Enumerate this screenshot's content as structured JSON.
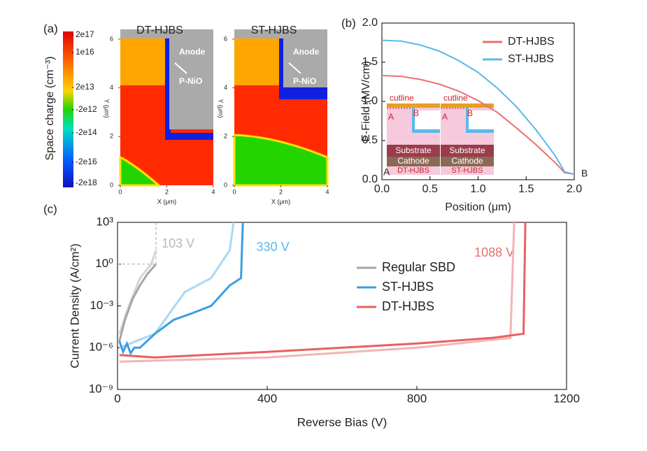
{
  "chart_data": [
    {
      "type": "simulation",
      "panel": "(a)",
      "colorbar_label": "Space charge (cm⁻³)",
      "colorbar_ticks": [
        {
          "value": 2e+17,
          "label": "2e17"
        },
        {
          "value": 1e+16,
          "label": "1e16"
        },
        {
          "value": 20000000000000.0,
          "label": "2e13"
        },
        {
          "value": -2000000000000.0,
          "label": "-2e12"
        },
        {
          "value": -200000000000000.0,
          "label": "-2e14"
        },
        {
          "value": -2e+16,
          "label": "-2e16"
        },
        {
          "value": -2e+18,
          "label": "-2e18"
        }
      ],
      "maps": [
        {
          "title": "DT-HJBS",
          "anode": "Anode",
          "layer": "P-NiO"
        },
        {
          "title": "ST-HJBS",
          "anode": "Anode",
          "layer": "P-NiO"
        }
      ],
      "xlabel": "X (μm)",
      "ylabel": "Y (μm)",
      "xlim": [
        0,
        4
      ],
      "ylim": [
        0,
        6.4
      ],
      "xticks": [
        0,
        2,
        4
      ],
      "yticks": [
        0,
        2,
        4,
        6
      ]
    },
    {
      "type": "line",
      "panel": "(b)",
      "xlabel": "Position (μm)",
      "ylabel": "E-Field (MV/cm)",
      "xlim": [
        0,
        2
      ],
      "ylim": [
        0,
        2
      ],
      "xticks": [
        {
          "value": 0,
          "label": "0.0"
        },
        {
          "value": 0.5,
          "label": "0.5"
        },
        {
          "value": 1,
          "label": "1.0"
        },
        {
          "value": 1.5,
          "label": "1.5"
        },
        {
          "value": 2,
          "label": "2.0"
        }
      ],
      "yticks": [
        {
          "value": 0,
          "label": "0.0"
        },
        {
          "value": 0.5,
          "label": "0.5"
        },
        {
          "value": 1,
          "label": "1.0"
        },
        {
          "value": 1.5,
          "label": "1.5"
        },
        {
          "value": 2,
          "label": "2.0"
        }
      ],
      "x": [
        0,
        0.2,
        0.4,
        0.6,
        0.8,
        1.0,
        1.2,
        1.4,
        1.6,
        1.8,
        1.9,
        2.0
      ],
      "series": [
        {
          "name": "DT-HJBS",
          "color": "#e8706f",
          "values": [
            1.33,
            1.32,
            1.28,
            1.22,
            1.13,
            1.01,
            0.86,
            0.66,
            0.45,
            0.22,
            0.09,
            0.07
          ]
        },
        {
          "name": "ST-HJBS",
          "color": "#5bb8ea",
          "values": [
            1.78,
            1.77,
            1.72,
            1.64,
            1.52,
            1.37,
            1.17,
            0.93,
            0.64,
            0.31,
            0.1,
            0.07
          ]
        }
      ],
      "legend": "upper right",
      "point_a": "A",
      "point_b": "B",
      "insets": [
        {
          "title": "DT-HJBS",
          "cutline": "cutline",
          "a": "A",
          "b": "B",
          "substrate": "Substrate",
          "cathode": "Cathode"
        },
        {
          "title": "ST-HJBS",
          "cutline": "cutline",
          "a": "A",
          "b": "B",
          "substrate": "Substrate",
          "cathode": "Cathode"
        }
      ]
    },
    {
      "type": "line",
      "panel": "(c)",
      "xlabel": "Reverse Bias (V)",
      "ylabel": "Current Density (A/cm²)",
      "log_y": true,
      "xlim": [
        0,
        1200
      ],
      "ylim": [
        1e-09,
        1000
      ],
      "xticks": [
        0,
        400,
        800,
        1200
      ],
      "yticks": [
        {
          "value": 1e-09,
          "label": "10⁻⁹"
        },
        {
          "value": 1e-06,
          "label": "10⁻⁶"
        },
        {
          "value": 0.001,
          "label": "10⁻³"
        },
        {
          "value": 1,
          "label": "10⁰"
        },
        {
          "value": 1000,
          "label": "10³"
        }
      ],
      "series": [
        {
          "color": "#d4d4d4",
          "x": [
            5,
            30,
            60,
            90,
            103
          ],
          "values": [
            1e-05,
            0.001,
            0.1,
            1,
            10
          ]
        },
        {
          "color": "#a8d8f5",
          "x": [
            5,
            100,
            180,
            250,
            300,
            310
          ],
          "values": [
            1e-06,
            1e-05,
            0.01,
            0.1,
            10,
            1000
          ]
        },
        {
          "color": "#f4b4b4",
          "x": [
            5,
            400,
            800,
            1050,
            1060
          ],
          "values": [
            1e-07,
            2e-07,
            1e-06,
            5e-06,
            1000
          ]
        },
        {
          "name": "Regular SBD",
          "color": "#a6a6a6",
          "x": [
            5,
            20,
            40,
            60,
            80,
            103
          ],
          "values": [
            3e-06,
            0.0001,
            0.003,
            0.03,
            0.2,
            1
          ]
        },
        {
          "name": "ST-HJBS",
          "color": "#3a9ee0",
          "x": [
            5,
            15,
            25,
            35,
            45,
            60,
            100,
            150,
            200,
            250,
            300,
            330,
            335
          ],
          "values": [
            3e-06,
            5e-07,
            2e-06,
            4e-07,
            1e-06,
            1e-06,
            1e-05,
            0.0001,
            0.0003,
            0.001,
            0.03,
            0.1,
            1000
          ]
        },
        {
          "name": "DT-HJBS",
          "color": "#e8605f",
          "x": [
            5,
            100,
            400,
            800,
            1000,
            1085,
            1090
          ],
          "values": [
            3e-07,
            2e-07,
            5e-07,
            2e-06,
            5e-06,
            1e-05,
            1000
          ]
        }
      ],
      "annotations": [
        {
          "label": "103 V",
          "value": 103,
          "level": 1,
          "color": "#b8b8b8"
        },
        {
          "label": "330 V",
          "value": 330,
          "color": "#5bb8ea"
        },
        {
          "label": "1088 V",
          "value": 1088,
          "color": "#e8706f"
        }
      ],
      "legend": "center right"
    }
  ]
}
